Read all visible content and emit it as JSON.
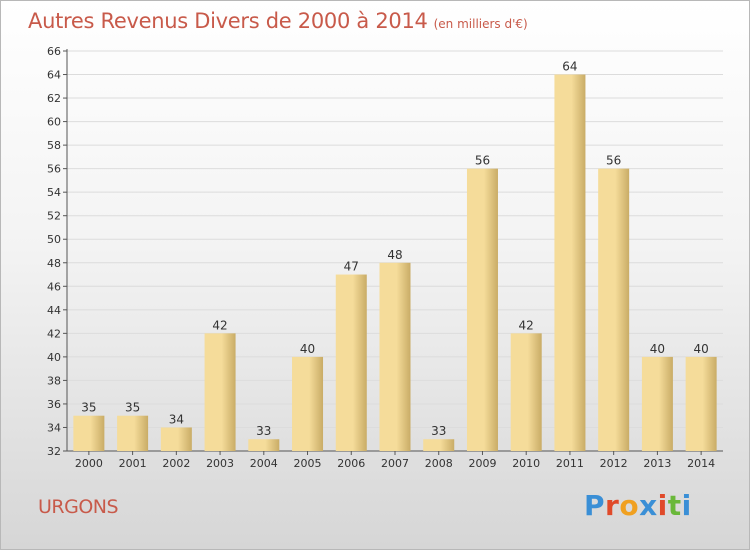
{
  "header": {
    "title": "Autres Revenus Divers de 2000 à 2014",
    "subtitle": "(en milliers d'€)"
  },
  "footer": {
    "place": "URGONS",
    "brand": "Proxiti",
    "brand_colors": [
      "#3a8fd6",
      "#e04a2a",
      "#f0a020",
      "#3a8fd6",
      "#e04a2a",
      "#6ab83a",
      "#3a8fd6"
    ]
  },
  "colors": {
    "bar_light": "#f5dc9a",
    "bar_dark": "#c9ac66",
    "title": "#c85a4a",
    "grid": "#dcdcdc"
  },
  "chart_data": {
    "type": "bar",
    "title": "Autres Revenus Divers de 2000 à 2014",
    "subtitle": "(en milliers d'€)",
    "categories": [
      "2000",
      "2001",
      "2002",
      "2003",
      "2004",
      "2005",
      "2006",
      "2007",
      "2008",
      "2009",
      "2010",
      "2011",
      "2012",
      "2013",
      "2014"
    ],
    "values": [
      35,
      35,
      34,
      42,
      33,
      40,
      47,
      48,
      33,
      56,
      42,
      64,
      56,
      40,
      40
    ],
    "ylim": [
      32,
      66
    ],
    "yticks": [
      32,
      34,
      36,
      38,
      40,
      42,
      44,
      46,
      48,
      50,
      52,
      54,
      56,
      58,
      60,
      62,
      64,
      66
    ],
    "grid": true,
    "xlabel": "",
    "ylabel": ""
  }
}
